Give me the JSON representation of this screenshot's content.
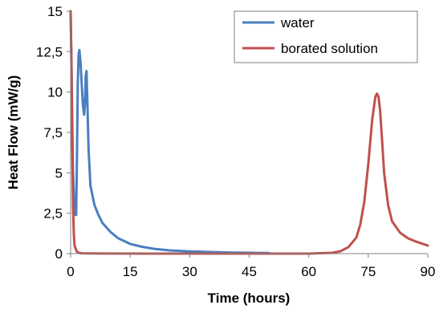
{
  "chart_data": {
    "type": "line",
    "xlabel": "Time (hours)",
    "ylabel": "Heat Flow (mW/g)",
    "xlim": [
      0,
      90
    ],
    "ylim": [
      0,
      15
    ],
    "x_ticks": [
      "0",
      "15",
      "30",
      "45",
      "60",
      "75",
      "90"
    ],
    "y_ticks": [
      "0",
      "2,5",
      "5",
      "7,5",
      "10",
      "12,5",
      "15"
    ],
    "grid": false,
    "legend_position": "top-right",
    "series": [
      {
        "name": "water",
        "color": "#4a7fc1",
        "points": [
          [
            0,
            15
          ],
          [
            0.3,
            10
          ],
          [
            0.6,
            5
          ],
          [
            0.9,
            3.2
          ],
          [
            1.2,
            2.4
          ],
          [
            1.4,
            2.4
          ],
          [
            1.6,
            6
          ],
          [
            1.8,
            10.5
          ],
          [
            2.0,
            12.3
          ],
          [
            2.2,
            12.6
          ],
          [
            2.5,
            11.8
          ],
          [
            2.8,
            10.5
          ],
          [
            3.1,
            9.2
          ],
          [
            3.4,
            8.6
          ],
          [
            3.6,
            9.2
          ],
          [
            3.8,
            11.0
          ],
          [
            4.0,
            11.3
          ],
          [
            4.2,
            9.5
          ],
          [
            4.5,
            6.5
          ],
          [
            5,
            4.2
          ],
          [
            6,
            3.0
          ],
          [
            7,
            2.4
          ],
          [
            8,
            1.9
          ],
          [
            10,
            1.35
          ],
          [
            12,
            0.95
          ],
          [
            15,
            0.6
          ],
          [
            18,
            0.42
          ],
          [
            21,
            0.3
          ],
          [
            25,
            0.2
          ],
          [
            30,
            0.14
          ],
          [
            35,
            0.1
          ],
          [
            40,
            0.07
          ],
          [
            45,
            0.05
          ],
          [
            50,
            0.04
          ]
        ]
      },
      {
        "name": "borated solution",
        "color": "#c0504d",
        "points": [
          [
            0.0,
            15
          ],
          [
            0.2,
            12
          ],
          [
            0.4,
            7
          ],
          [
            0.6,
            3
          ],
          [
            0.8,
            1.2
          ],
          [
            1.0,
            0.5
          ],
          [
            1.5,
            0.15
          ],
          [
            2,
            0.05
          ],
          [
            3,
            0.02
          ],
          [
            5,
            0.01
          ],
          [
            20,
            0.0
          ],
          [
            40,
            0.0
          ],
          [
            60,
            0.0
          ],
          [
            66,
            0.05
          ],
          [
            68,
            0.15
          ],
          [
            70,
            0.4
          ],
          [
            72,
            1.0
          ],
          [
            73,
            1.8
          ],
          [
            74,
            3.2
          ],
          [
            75,
            5.5
          ],
          [
            76,
            8.3
          ],
          [
            76.8,
            9.7
          ],
          [
            77.2,
            9.9
          ],
          [
            77.6,
            9.7
          ],
          [
            78,
            8.8
          ],
          [
            78.5,
            7.0
          ],
          [
            79,
            5.0
          ],
          [
            80,
            3.0
          ],
          [
            81,
            2.0
          ],
          [
            83,
            1.3
          ],
          [
            85,
            0.95
          ],
          [
            87,
            0.75
          ],
          [
            90,
            0.5
          ]
        ]
      }
    ]
  }
}
